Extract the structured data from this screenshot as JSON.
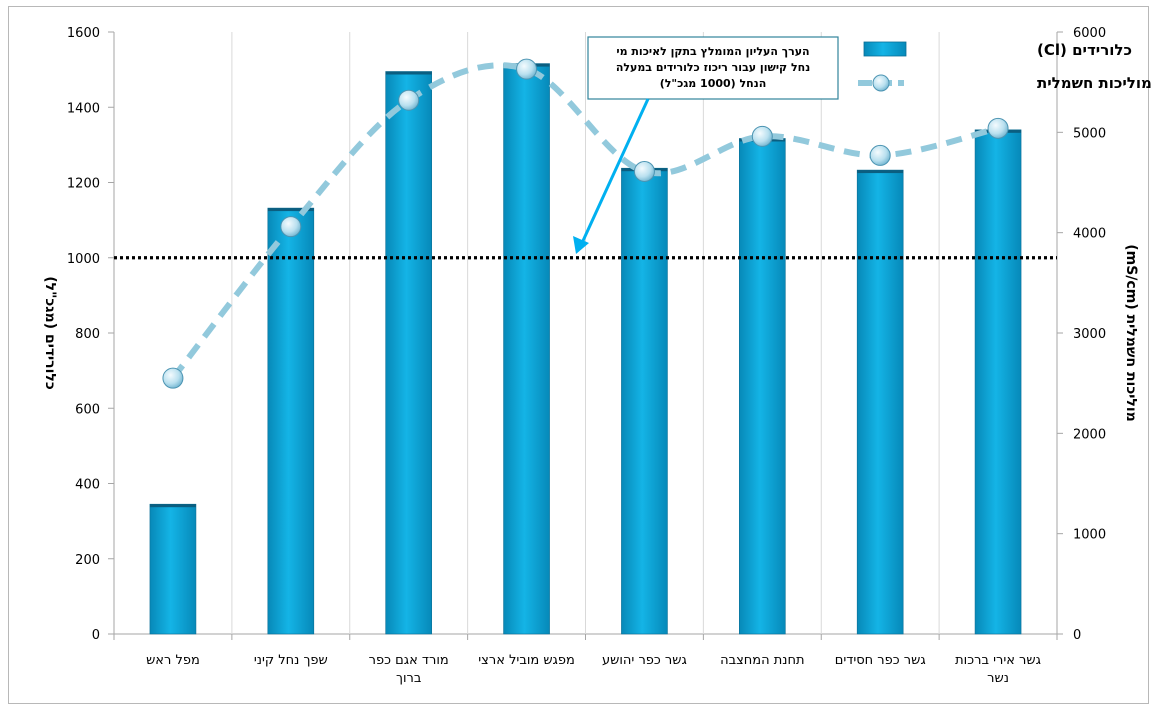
{
  "chart_data": {
    "type": "bar",
    "categories": [
      "מפל ראש",
      "שפך נחל קיני",
      "מורד אגם כפר ברוך",
      "מפגש מוביל ארצי",
      "גשר כפר יהושע",
      "תחנת המחצבה",
      "גשר כפר חסידים",
      "גשר אירי ברכות נשר"
    ],
    "series": [
      {
        "name": "כלורידים (Cl)",
        "type": "bar",
        "axis": "left",
        "color": "#0aa0d4",
        "values": [
          345,
          1132,
          1495,
          1516,
          1238,
          1317,
          1233,
          1340
        ]
      },
      {
        "name": "מוליכות חשמלית",
        "type": "line",
        "axis": "right",
        "color": "#92c9dc",
        "values": [
          2550,
          4060,
          5320,
          5630,
          4610,
          4960,
          4770,
          5040
        ]
      }
    ],
    "ylabel": "כלורידים (מגכ\"ל)",
    "y2label": "מוליכות חשמלית (mS/cm)",
    "ylim": [
      0,
      1600
    ],
    "y2lim": [
      0,
      6000
    ],
    "yticks": [
      0,
      200,
      400,
      600,
      800,
      1000,
      1200,
      1400,
      1600
    ],
    "y2ticks": [
      0,
      1000,
      2000,
      3000,
      4000,
      5000,
      6000
    ],
    "reference_line": {
      "value": 1000,
      "style": "dotted",
      "color": "#000000"
    },
    "annotation": {
      "lines": [
        "הערך העליון המומלץ בתקן לאיכות מי",
        "נחל קישון עבור ריכוז כלורידים במעלה",
        "הנחל (1000 מגכ\"ל)"
      ],
      "arrow_color": "#00b0f0"
    },
    "grid": "vertical-category-lines",
    "legend_position": "top-right"
  }
}
